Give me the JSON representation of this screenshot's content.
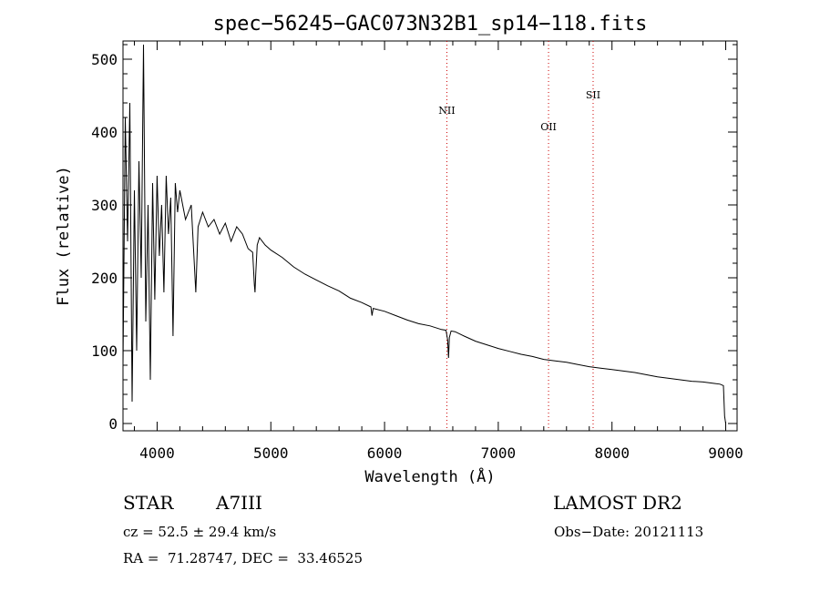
{
  "chart_data": {
    "type": "line",
    "title": "spec−56245−GAC073N32B1_sp14−118.fits",
    "xlabel": "Wavelength (Å)",
    "ylabel": "Flux (relative)",
    "xlim": [
      3700,
      9100
    ],
    "ylim": [
      -10,
      525
    ],
    "xticks": [
      4000,
      5000,
      6000,
      7000,
      8000,
      9000
    ],
    "yticks": [
      0,
      100,
      200,
      300,
      400,
      500
    ],
    "grid": false,
    "series": [
      {
        "name": "flux",
        "x": [
          3700,
          3720,
          3740,
          3760,
          3780,
          3800,
          3820,
          3840,
          3860,
          3880,
          3900,
          3920,
          3940,
          3960,
          3980,
          4000,
          4020,
          4040,
          4060,
          4080,
          4100,
          4120,
          4140,
          4160,
          4180,
          4200,
          4250,
          4300,
          4340,
          4360,
          4400,
          4450,
          4500,
          4550,
          4600,
          4650,
          4700,
          4750,
          4800,
          4840,
          4855,
          4861,
          4867,
          4880,
          4900,
          4950,
          5000,
          5100,
          5200,
          5300,
          5400,
          5500,
          5600,
          5700,
          5800,
          5880,
          5890,
          5900,
          6000,
          6100,
          6200,
          6300,
          6400,
          6500,
          6540,
          6555,
          6563,
          6570,
          6585,
          6620,
          6700,
          6800,
          6900,
          7000,
          7100,
          7200,
          7300,
          7400,
          7500,
          7600,
          7700,
          7800,
          7900,
          8000,
          8100,
          8200,
          8300,
          8400,
          8500,
          8600,
          8700,
          8800,
          8900,
          8950,
          8980,
          8990,
          9000
        ],
        "y": [
          80,
          420,
          250,
          440,
          30,
          320,
          100,
          360,
          200,
          520,
          140,
          300,
          60,
          330,
          170,
          340,
          230,
          300,
          180,
          340,
          260,
          310,
          120,
          330,
          290,
          320,
          280,
          300,
          180,
          270,
          290,
          270,
          280,
          260,
          275,
          250,
          270,
          260,
          240,
          235,
          190,
          180,
          205,
          245,
          255,
          245,
          238,
          228,
          215,
          205,
          197,
          189,
          182,
          172,
          166,
          160,
          148,
          158,
          154,
          148,
          142,
          137,
          134,
          129,
          128,
          115,
          90,
          118,
          127,
          126,
          120,
          113,
          108,
          103,
          99,
          95,
          92,
          88,
          86,
          84,
          81,
          78,
          76,
          74,
          72,
          70,
          67,
          64,
          62,
          60,
          58,
          57,
          55,
          54,
          52,
          10,
          0
        ]
      }
    ],
    "lines": [
      {
        "label": "NII",
        "x": 6548
      },
      {
        "label": "OII",
        "x": 7442
      },
      {
        "label": "SII",
        "x": 7834
      }
    ]
  },
  "info": {
    "object_type": "STAR",
    "subclass": "A7III",
    "survey": "LAMOST DR2",
    "cz": "cz = 52.5 ± 29.4 km/s",
    "obs_date": "Obs−Date: 20121113",
    "coords": "RA =  71.28747, DEC =  33.46525"
  }
}
